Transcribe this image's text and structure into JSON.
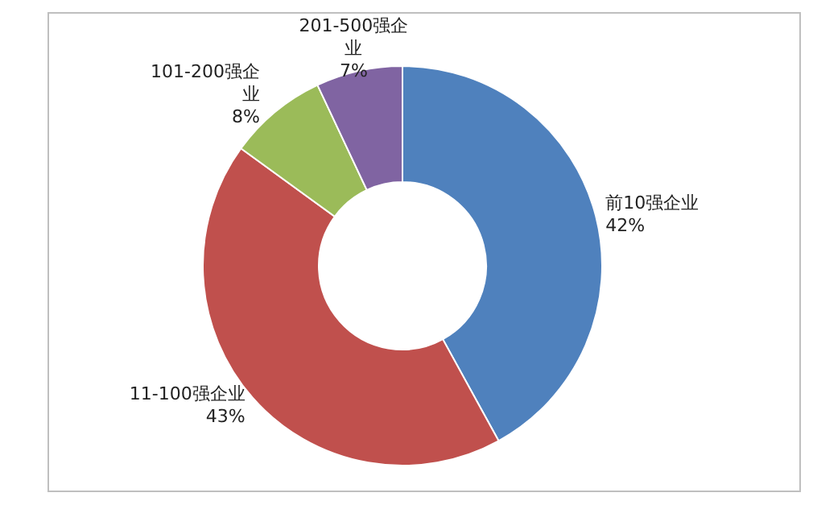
{
  "chart_data": {
    "type": "donut",
    "categories": [
      "前10强企业",
      "11-100强企业",
      "101-200强企业",
      "201-500强企业"
    ],
    "values": [
      42,
      43,
      8,
      7
    ],
    "colors": [
      "#4f81bd",
      "#c0504d",
      "#9bbb59",
      "#8064a2"
    ],
    "value_labels": [
      "42%",
      "43%",
      "8%",
      "7%"
    ]
  }
}
